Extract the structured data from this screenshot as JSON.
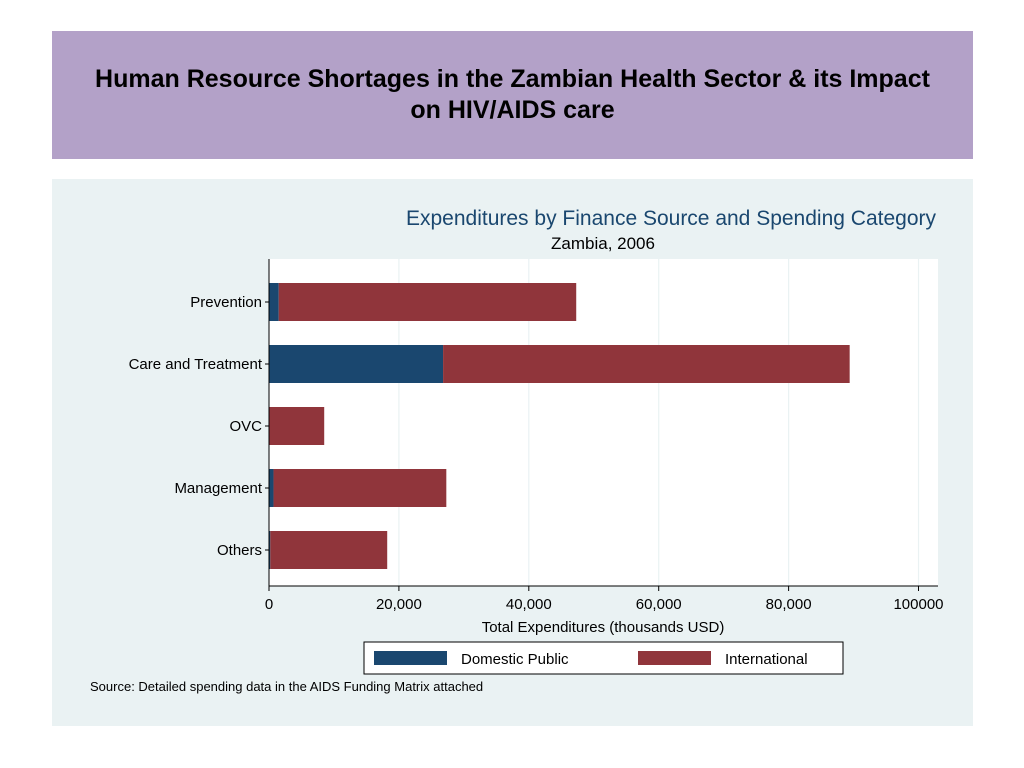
{
  "slide": {
    "title": "Human Resource Shortages in the Zambian Health Sector & its Impact on HIV/AIDS care"
  },
  "source_note": "Source: Detailed spending data in the AIDS Funding Matrix attached",
  "colors": {
    "banner": "#b3a1c8",
    "panel": "#eaf2f3",
    "domestic_public": "#1a476f",
    "international": "#90353b",
    "chart_title": "#1a476f"
  },
  "chart_data": {
    "type": "bar",
    "orientation": "horizontal",
    "stacked": true,
    "title": "Expenditures by Finance Source and Spending Category",
    "subtitle": "Zambia, 2006",
    "xlabel": "Total Expenditures (thousands USD)",
    "ylabel": "",
    "xlim": [
      0,
      103000
    ],
    "xticks": [
      0,
      20000,
      40000,
      60000,
      80000,
      100000
    ],
    "xtick_labels": [
      "0",
      "20,000",
      "40,000",
      "60,000",
      "80,000",
      "100000"
    ],
    "grid": true,
    "categories": [
      "Prevention",
      "Care and Treatment",
      "OVC",
      "Management",
      "Others"
    ],
    "series": [
      {
        "name": "Domestic Public",
        "color": "#1a476f",
        "values": [
          1500,
          26800,
          0,
          700,
          200
        ]
      },
      {
        "name": "International",
        "color": "#90353b",
        "values": [
          45800,
          62600,
          8500,
          26600,
          18000
        ]
      }
    ],
    "legend": {
      "position": "bottom",
      "entries": [
        "Domestic Public",
        "International"
      ]
    }
  }
}
